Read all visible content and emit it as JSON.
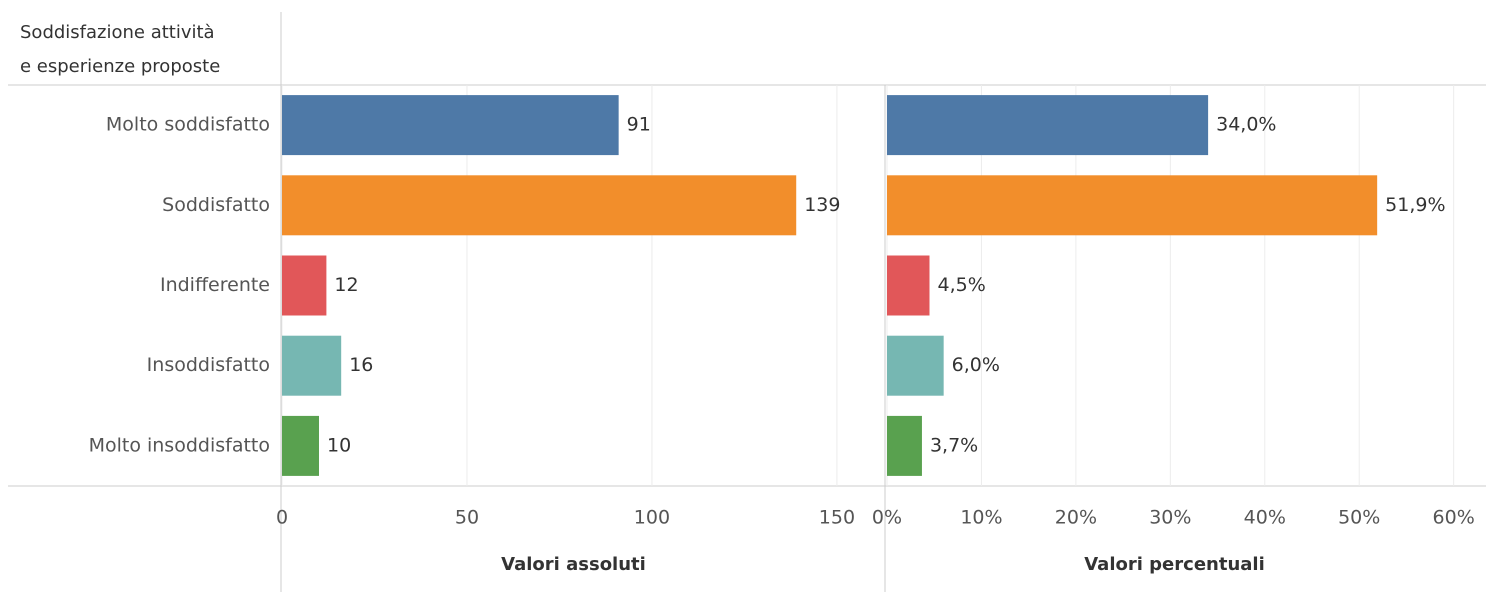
{
  "chart_data": [
    {
      "type": "bar",
      "orientation": "horizontal",
      "row_header": [
        "Soddisfazione attività",
        "e esperienze proposte"
      ],
      "categories": [
        "Molto soddisfatto",
        "Soddisfatto",
        "Indifferente",
        "Insoddisfatto",
        "Molto insoddisfatto"
      ],
      "values": [
        91,
        139,
        12,
        16,
        10
      ],
      "colors": [
        "#4e79a7",
        "#f28e2b",
        "#e15759",
        "#76b7b2",
        "#59a14f"
      ],
      "xlabel": "Valori assoluti",
      "xlim": [
        0,
        163
      ],
      "xticks": [
        0,
        50,
        100,
        150
      ],
      "grid": true
    },
    {
      "type": "bar",
      "orientation": "horizontal",
      "values": [
        34.0,
        51.9,
        4.5,
        6.0,
        3.7
      ],
      "value_labels": [
        "34,0%",
        "51,9%",
        "4,5%",
        "6,0%",
        "3,7%"
      ],
      "colors": [
        "#4e79a7",
        "#f28e2b",
        "#e15759",
        "#76b7b2",
        "#59a14f"
      ],
      "xlabel": "Valori percentuali",
      "xlim": [
        0,
        63
      ],
      "xticks": [
        {
          "value": 0,
          "label": "0%"
        },
        {
          "value": 10,
          "label": "10%"
        },
        {
          "value": 20,
          "label": "20%"
        },
        {
          "value": 30,
          "label": "30%"
        },
        {
          "value": 40,
          "label": "40%"
        },
        {
          "value": 50,
          "label": "50%"
        },
        {
          "value": 60,
          "label": "60%"
        }
      ],
      "grid": true
    }
  ]
}
